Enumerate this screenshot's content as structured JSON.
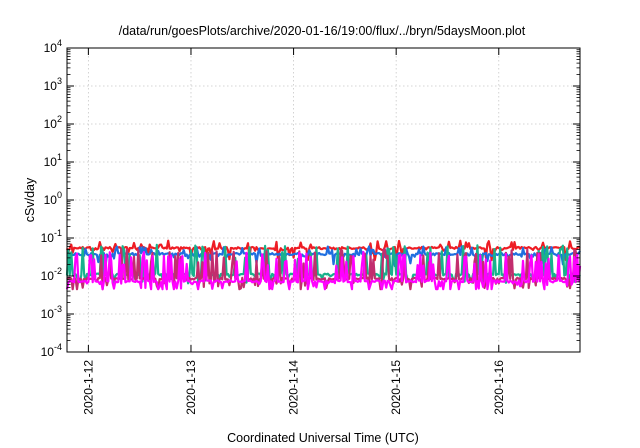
{
  "chart_data": {
    "type": "line",
    "title": "/data/run/goesPlots/archive/2020-01-16/19:00/flux/../bryn/5daysMoon.plot",
    "xlabel": "Coordinated Universal Time (UTC)",
    "ylabel": "cSv/day",
    "y_scale": "log",
    "ylim": [
      0.0001,
      10000
    ],
    "y_ticks": [
      {
        "base": "10",
        "exp": "-4",
        "value": 0.0001
      },
      {
        "base": "10",
        "exp": "-3",
        "value": 0.001
      },
      {
        "base": "10",
        "exp": "-2",
        "value": 0.01
      },
      {
        "base": "10",
        "exp": "-1",
        "value": 0.1
      },
      {
        "base": "10",
        "exp": "0",
        "value": 1
      },
      {
        "base": "10",
        "exp": "1",
        "value": 10
      },
      {
        "base": "10",
        "exp": "2",
        "value": 100
      },
      {
        "base": "10",
        "exp": "3",
        "value": 1000
      },
      {
        "base": "10",
        "exp": "4",
        "value": 10000
      }
    ],
    "xlim": [
      "2020-01-11T19:00",
      "2020-01-16T19:00"
    ],
    "x_ticks": [
      {
        "label": "2020-1-12",
        "value": "2020-01-12T00:00"
      },
      {
        "label": "2020-1-13",
        "value": "2020-01-13T00:00"
      },
      {
        "label": "2020-1-14",
        "value": "2020-01-14T00:00"
      },
      {
        "label": "2020-1-15",
        "value": "2020-01-15T00:00"
      },
      {
        "label": "2020-1-16",
        "value": "2020-01-16T00:00"
      }
    ],
    "grid": true,
    "series": [
      {
        "color": "#ee1c24",
        "base": 0.055,
        "spike_low": 0.04,
        "amp": 0.12,
        "seed": 3
      },
      {
        "color": "#1f6fe0",
        "base": 0.038,
        "spike_low": 0.03,
        "amp": 0.14,
        "seed": 7
      },
      {
        "color": "#18b28c",
        "base": 0.011,
        "spike_low": 0.03,
        "amp": 0.35,
        "seed": 11
      },
      {
        "color": "#c22d6e",
        "base": 0.0085,
        "spike_low": 0.035,
        "amp": 0.42,
        "seed": 13
      },
      {
        "color": "#ff00ff",
        "base": 0.0072,
        "spike_low": 0.035,
        "amp": 0.48,
        "seed": 17
      }
    ]
  }
}
